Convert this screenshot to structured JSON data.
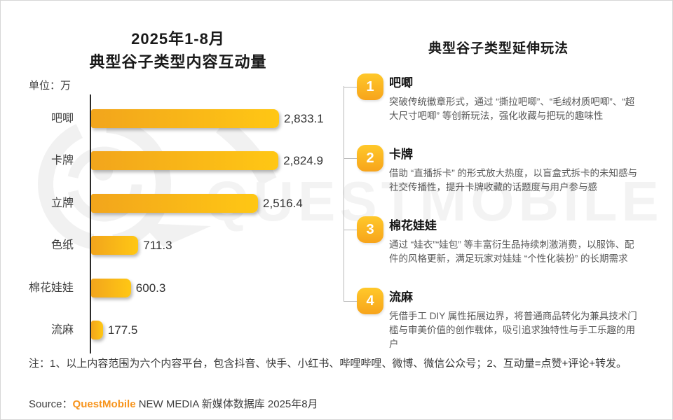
{
  "left_chart": {
    "title_line1": "2025年1-8月",
    "title_line2": "典型谷子类型内容互动量",
    "unit_label": "单位：万"
  },
  "chart_data": {
    "type": "bar",
    "orientation": "horizontal",
    "title": "2025年1-8月典型谷子类型内容互动量",
    "unit": "万",
    "categories": [
      "吧唧",
      "卡牌",
      "立牌",
      "色纸",
      "棉花娃娃",
      "流麻"
    ],
    "values": [
      2833.1,
      2824.9,
      2516.4,
      711.3,
      600.3,
      177.5
    ],
    "value_labels": [
      "2,833.1",
      "2,824.9",
      "2,516.4",
      "711.3",
      "600.3",
      "177.5"
    ],
    "xlim": [
      0,
      2870
    ],
    "grid": false,
    "legend": "none"
  },
  "right_panel": {
    "title": "典型谷子类型延伸玩法",
    "items": [
      {
        "number": "1",
        "title": "吧唧",
        "desc": "突破传统徽章形式，通过 “撕拉吧唧”、“毛绒材质吧唧”、“超大尺寸吧唧” 等创新玩法，强化收藏与把玩的趣味性"
      },
      {
        "number": "2",
        "title": "卡牌",
        "desc": "借助 “直播拆卡” 的形式放大热度，以盲盒式拆卡的未知感与社交传播性，提升卡牌收藏的话题度与用户参与感"
      },
      {
        "number": "3",
        "title": "棉花娃娃",
        "desc": "通过 “娃衣”“娃包” 等丰富衍生品持续刺激消费，以服饰、配件的风格更新，满足玩家对娃娃 “个性化装扮” 的长期需求"
      },
      {
        "number": "4",
        "title": "流麻",
        "desc": "凭借手工 DIY 属性拓展边界，将普通商品转化为兼具技术门槛与审美价值的创作载体，吸引追求独特性与手工乐趣的用户"
      }
    ]
  },
  "footnote": "注：1、以上内容范围为六个内容平台，包含抖音、快手、小红书、哔哩哔哩、微博、微信公众号；2、互动量=点赞+评论+转发。",
  "source": {
    "prefix": "Source：",
    "brand": "QuestMobile",
    "suffix": " NEW MEDIA 新媒体数据库 2025年8月"
  },
  "watermark": {
    "text": "QUESTMOBILE"
  },
  "colors": {
    "bar_gradient_start": "#F2A51C",
    "bar_gradient_end": "#FFC714",
    "badge_gradient_start": "#FFC82A",
    "badge_gradient_end": "#F7A41B",
    "brand_orange": "#F7941D",
    "watermark_gray": "#F1F1F1",
    "axis_black": "#2B2B2B"
  }
}
